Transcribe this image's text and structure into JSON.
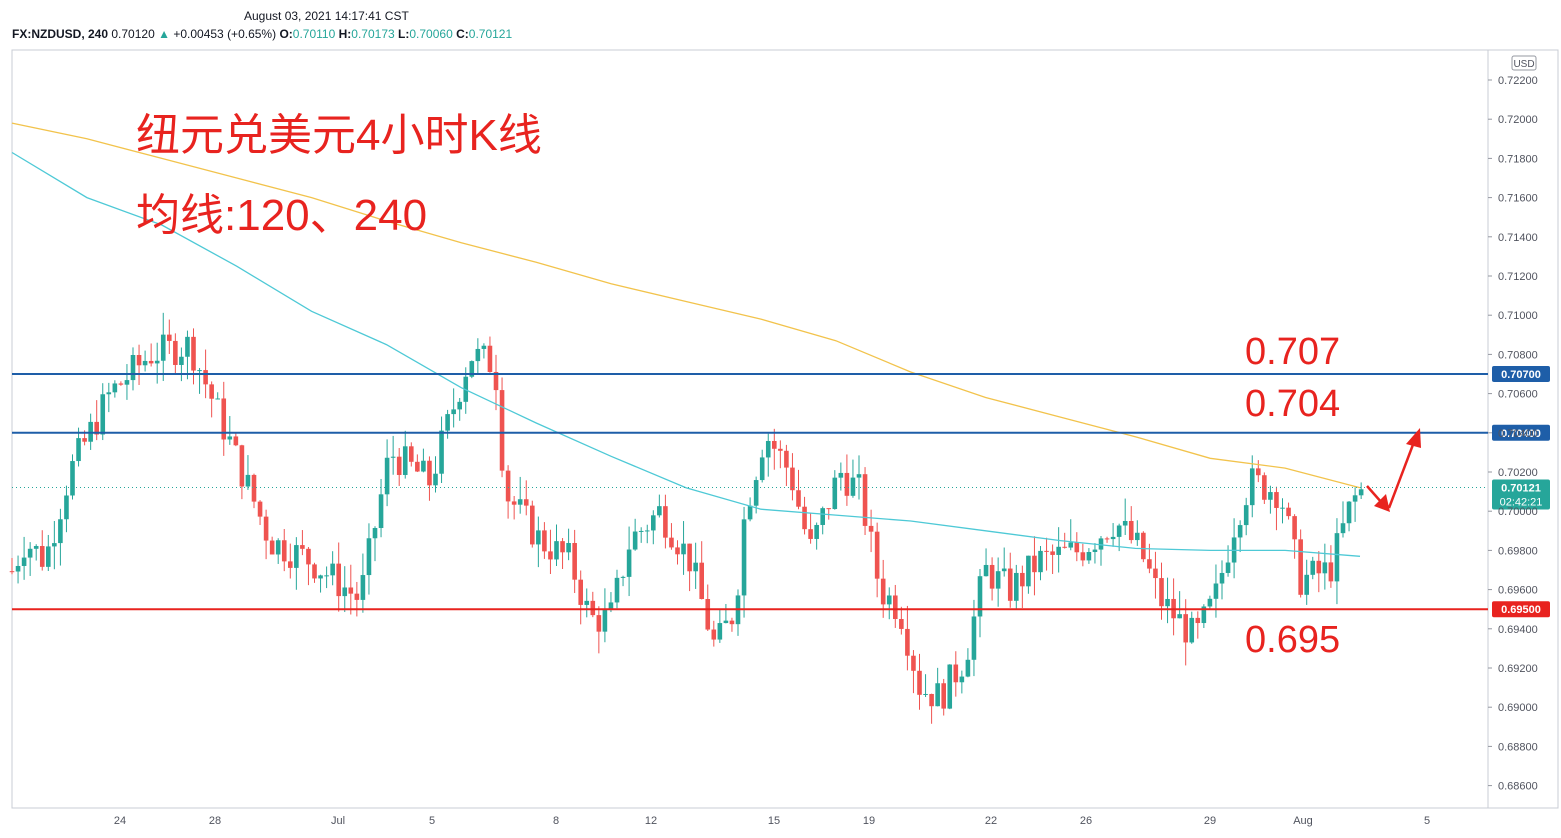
{
  "header": {
    "timestamp": "August 03, 2021 14:17:41 CST",
    "symbol": "FX:NZDUSD, 240",
    "last": "0.70120",
    "up_arrow": "▲",
    "change": "+0.00453 (+0.65%)",
    "open_label": "O:",
    "open": "0.70110",
    "high_label": "H:",
    "high": "0.70173",
    "low_label": "L:",
    "low": "0.70060",
    "close_label": "C:",
    "close": "0.70121"
  },
  "annotations": {
    "title_line1": "纽元兑美元4小时K线",
    "title_line2": "均线:120、240",
    "level_707": "0.707",
    "level_704": "0.704",
    "level_695": "0.695"
  },
  "colors": {
    "up": "#26a69a",
    "down": "#ef5350",
    "ma120": "#4ec9d6",
    "ma240": "#f2c34c",
    "blue_line": "#1e5ea8",
    "red_line": "#e8231f",
    "annotation": "#e8231f"
  },
  "chart_data": {
    "type": "candlestick",
    "currency": "USD",
    "ylim": [
      0.685,
      0.723
    ],
    "y_ticks": [
      "0.72200",
      "0.72000",
      "0.71800",
      "0.71600",
      "0.71400",
      "0.71200",
      "0.71000",
      "0.70800",
      "0.70600",
      "0.70400",
      "0.70200",
      "0.70000",
      "0.69800",
      "0.69600",
      "0.69400",
      "0.69200",
      "0.69000",
      "0.68800",
      "0.68600"
    ],
    "x_ticks": [
      "24",
      "28",
      "Jul",
      "5",
      "8",
      "12",
      "15",
      "19",
      "22",
      "26",
      "29",
      "Aug",
      "5"
    ],
    "horizontal_lines": [
      {
        "value": 0.707,
        "label": "0.70700",
        "color": "blue"
      },
      {
        "value": 0.704,
        "label": "0.70400",
        "color": "blue"
      },
      {
        "value": 0.695,
        "label": "0.69500",
        "color": "red"
      }
    ],
    "current_price": {
      "label": "0.70121",
      "countdown": "02:42:21",
      "value": 0.70121
    },
    "ma120": [
      [
        0,
        0.7183
      ],
      [
        30,
        0.716
      ],
      [
        60,
        0.7146
      ],
      [
        90,
        0.7125
      ],
      [
        120,
        0.7102
      ],
      [
        150,
        0.7085
      ],
      [
        180,
        0.7063
      ],
      [
        210,
        0.7045
      ],
      [
        240,
        0.7028
      ],
      [
        270,
        0.7012
      ],
      [
        300,
        0.7001
      ],
      [
        330,
        0.6998
      ],
      [
        360,
        0.6995
      ],
      [
        390,
        0.699
      ],
      [
        420,
        0.6985
      ],
      [
        450,
        0.6981
      ],
      [
        480,
        0.698
      ],
      [
        510,
        0.698
      ],
      [
        540,
        0.6977
      ]
    ],
    "ma240": [
      [
        0,
        0.7198
      ],
      [
        30,
        0.719
      ],
      [
        60,
        0.718
      ],
      [
        90,
        0.717
      ],
      [
        120,
        0.716
      ],
      [
        150,
        0.7148
      ],
      [
        180,
        0.7137
      ],
      [
        210,
        0.7127
      ],
      [
        240,
        0.7116
      ],
      [
        270,
        0.7107
      ],
      [
        300,
        0.7098
      ],
      [
        330,
        0.7087
      ],
      [
        360,
        0.7071
      ],
      [
        390,
        0.7058
      ],
      [
        420,
        0.7048
      ],
      [
        450,
        0.7038
      ],
      [
        480,
        0.7027
      ],
      [
        510,
        0.7022
      ],
      [
        540,
        0.7012
      ]
    ]
  }
}
